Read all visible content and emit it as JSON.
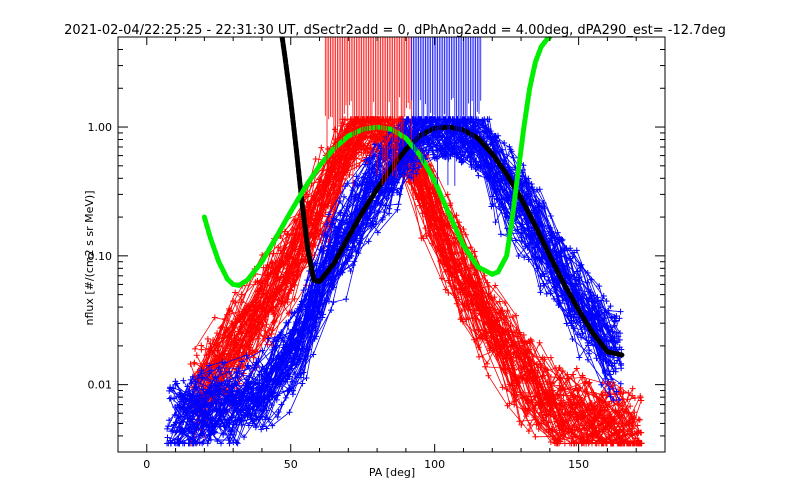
{
  "chart_data": {
    "type": "line",
    "title": "2021-02-04/22:25:25 - 22:31:30 UT, dSectr2add = 0, dPhAng2add = 4.00deg, dPA290_est= -12.7deg",
    "xlabel": "PA [deg]",
    "ylabel": "nflux [#/(cm2 s sr MeV)]",
    "xlim": [
      -10,
      180
    ],
    "ylim": [
      0.003,
      5.0
    ],
    "y_scale": "log",
    "x_ticks": [
      0,
      50,
      100,
      150
    ],
    "x_tick_labels": [
      "0",
      "50",
      "100",
      "150"
    ],
    "y_ticks": [
      1.0,
      0.1,
      0.01
    ],
    "y_tick_labels": [
      "1.00",
      "0.10",
      "0.01"
    ],
    "grid": false,
    "series": [
      {
        "color": "#ff0000",
        "style": "line+plus",
        "peak_pa": 80,
        "peak_flux": 1.0,
        "x_range": [
          15,
          172
        ],
        "x": [
          15,
          20,
          30,
          40,
          50,
          60,
          65,
          70,
          75,
          80,
          85,
          90,
          95,
          100,
          110,
          120,
          130,
          140,
          150,
          160,
          170
        ],
        "y": [
          0.008,
          0.012,
          0.025,
          0.05,
          0.11,
          0.3,
          0.5,
          0.75,
          0.93,
          1.0,
          0.95,
          0.75,
          0.48,
          0.28,
          0.09,
          0.035,
          0.015,
          0.009,
          0.007,
          0.006,
          0.005
        ]
      },
      {
        "color": "#0000ff",
        "style": "line+plus",
        "peak_pa": 104,
        "peak_flux": 1.0,
        "x_range": [
          7,
          165
        ],
        "x": [
          8,
          20,
          30,
          40,
          50,
          55,
          60,
          70,
          80,
          90,
          95,
          100,
          105,
          110,
          115,
          120,
          130,
          140,
          150,
          160,
          165
        ],
        "y": [
          0.006,
          0.007,
          0.008,
          0.01,
          0.02,
          0.03,
          0.07,
          0.18,
          0.4,
          0.7,
          0.88,
          0.98,
          1.0,
          0.95,
          0.8,
          0.6,
          0.3,
          0.12,
          0.05,
          0.025,
          0.02
        ]
      },
      {
        "color": "#000000",
        "style": "thick-dashed",
        "x": [
          47,
          48,
          50,
          52,
          54,
          56,
          58,
          60,
          65,
          70,
          75,
          80,
          85,
          90,
          95,
          100,
          105,
          110,
          115,
          120,
          125,
          130,
          135,
          140,
          145,
          150,
          155,
          160,
          165
        ],
        "y": [
          5.0,
          3.5,
          1.6,
          0.65,
          0.25,
          0.11,
          0.065,
          0.063,
          0.087,
          0.14,
          0.22,
          0.33,
          0.48,
          0.67,
          0.86,
          0.98,
          1.0,
          0.95,
          0.82,
          0.62,
          0.43,
          0.28,
          0.17,
          0.1,
          0.06,
          0.038,
          0.025,
          0.018,
          0.017
        ]
      },
      {
        "color": "#00ee00",
        "style": "thick-dashed",
        "x": [
          20,
          22,
          25,
          28,
          30,
          32,
          35,
          40,
          45,
          50,
          55,
          60,
          65,
          70,
          75,
          80,
          85,
          90,
          95,
          100,
          105,
          110,
          115,
          120,
          122,
          125,
          127,
          129,
          131,
          133,
          135,
          137,
          139,
          140
        ],
        "y": [
          0.2,
          0.14,
          0.09,
          0.066,
          0.06,
          0.059,
          0.065,
          0.09,
          0.14,
          0.22,
          0.34,
          0.5,
          0.68,
          0.85,
          0.96,
          1.0,
          0.96,
          0.82,
          0.6,
          0.38,
          0.21,
          0.12,
          0.082,
          0.072,
          0.075,
          0.1,
          0.2,
          0.45,
          1.0,
          2.0,
          3.2,
          4.2,
          4.8,
          5.0
        ]
      }
    ],
    "pitch_markers": [
      {
        "color": "#ff0000",
        "x_range": [
          62,
          92
        ]
      },
      {
        "color": "#0000ff",
        "x_range": [
          92,
          116
        ]
      }
    ]
  }
}
